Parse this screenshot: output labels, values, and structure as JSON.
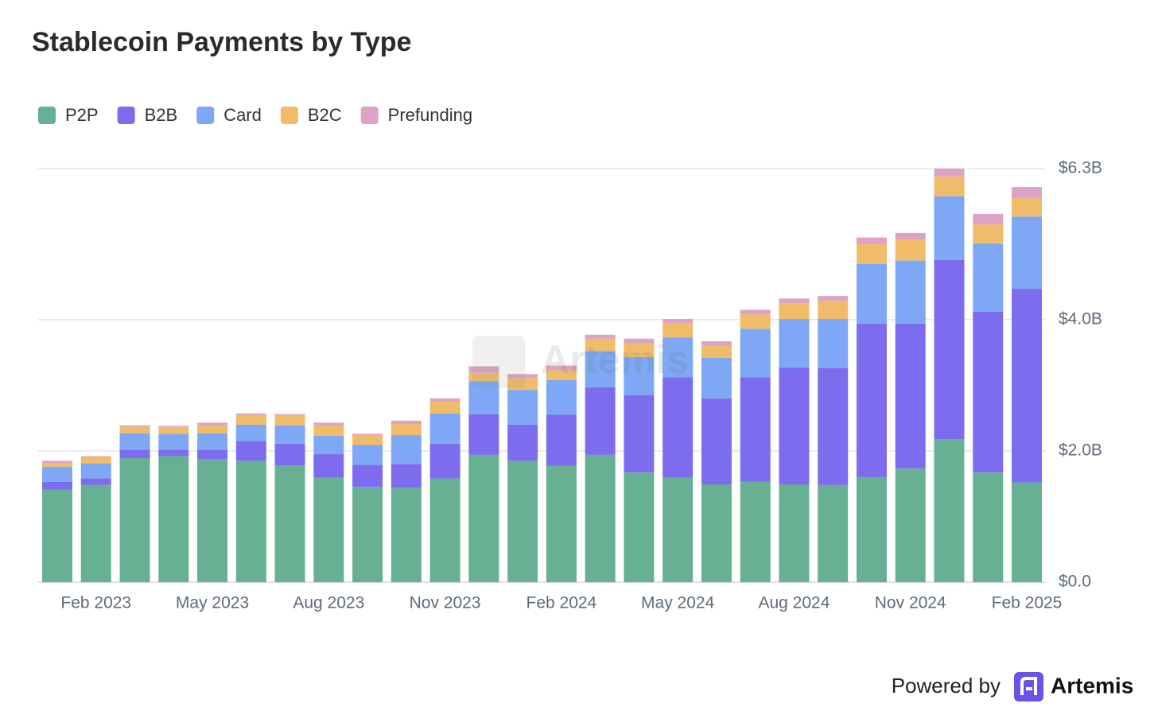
{
  "chart_data": {
    "type": "stacked_bar",
    "title": "Stablecoin Payments by Type",
    "categories": [
      null,
      "Feb 2023",
      null,
      null,
      "May 2023",
      null,
      null,
      "Aug 2023",
      null,
      null,
      "Nov 2023",
      null,
      null,
      "Feb 2024",
      null,
      null,
      "May 2024",
      null,
      null,
      "Aug 2024",
      null,
      null,
      "Nov 2024",
      null,
      null,
      "Feb 2025"
    ],
    "series": [
      {
        "name": "P2P",
        "color": "#68b094",
        "values": [
          1.41,
          1.48,
          1.89,
          1.92,
          1.87,
          1.85,
          1.78,
          1.59,
          1.45,
          1.44,
          1.58,
          1.94,
          1.85,
          1.77,
          1.94,
          1.67,
          1.59,
          1.49,
          1.53,
          1.49,
          1.48,
          1.6,
          1.73,
          2.18,
          1.67,
          1.52
        ]
      },
      {
        "name": "B2B",
        "color": "#7e6cee",
        "values": [
          0.12,
          0.1,
          0.13,
          0.1,
          0.15,
          0.3,
          0.33,
          0.36,
          0.34,
          0.36,
          0.53,
          0.62,
          0.55,
          0.78,
          1.03,
          1.18,
          1.53,
          1.31,
          1.59,
          1.78,
          1.78,
          2.34,
          2.21,
          2.73,
          2.45,
          2.95
        ]
      },
      {
        "name": "Card",
        "color": "#7ea7f5",
        "values": [
          0.23,
          0.23,
          0.25,
          0.24,
          0.25,
          0.25,
          0.28,
          0.28,
          0.3,
          0.44,
          0.46,
          0.5,
          0.53,
          0.53,
          0.55,
          0.58,
          0.61,
          0.62,
          0.74,
          0.74,
          0.75,
          0.91,
          0.96,
          0.97,
          1.04,
          1.1
        ]
      },
      {
        "name": "B2C",
        "color": "#f0bc6a",
        "values": [
          0.05,
          0.1,
          0.1,
          0.1,
          0.12,
          0.15,
          0.15,
          0.16,
          0.15,
          0.17,
          0.18,
          0.13,
          0.18,
          0.15,
          0.19,
          0.21,
          0.21,
          0.18,
          0.22,
          0.24,
          0.28,
          0.3,
          0.32,
          0.3,
          0.29,
          0.28
        ]
      },
      {
        "name": "Prefunding",
        "color": "#dca3c6",
        "values": [
          0.04,
          0.01,
          0.02,
          0.02,
          0.04,
          0.02,
          0.02,
          0.04,
          0.02,
          0.05,
          0.05,
          0.1,
          0.06,
          0.07,
          0.06,
          0.07,
          0.07,
          0.07,
          0.07,
          0.07,
          0.07,
          0.1,
          0.1,
          0.12,
          0.16,
          0.17
        ]
      }
    ],
    "ylim": [
      0,
      6.3
    ],
    "yticks": [
      {
        "value": 0,
        "label": "$0.0"
      },
      {
        "value": 2,
        "label": "$2.0B"
      },
      {
        "value": 4,
        "label": "$4.0B"
      },
      {
        "value": 6.3,
        "label": "$6.3B"
      }
    ],
    "grid": true,
    "legend": "top-left",
    "watermark": "Artemis",
    "footer": {
      "prefix": "Powered by",
      "brand": "Artemis"
    }
  }
}
